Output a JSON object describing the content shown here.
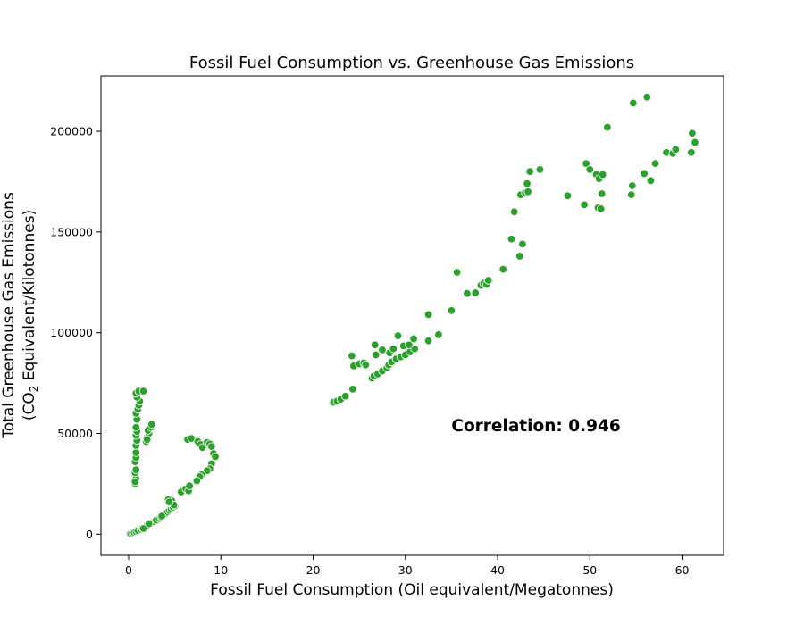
{
  "chart_data": {
    "type": "scatter",
    "title": "Fossil Fuel Consumption vs. Greenhouse Gas Emissions",
    "xlabel": "Fossil Fuel Consumption (Oil equivalent/Megatonnes)",
    "ylabel_line1": "Total Greenhouse Gas Emissions",
    "ylabel_line2_prefix": "(CO",
    "ylabel_line2_sub": "2",
    "ylabel_line2_suffix": " Equivalent/Kilotonnes)",
    "annotation": "Correlation: 0.946",
    "annotation_position": {
      "x": 35,
      "y": 51000
    },
    "xlim": [
      -3,
      64.5
    ],
    "ylim": [
      -10500,
      227500
    ],
    "xticks": [
      0,
      10,
      20,
      30,
      40,
      50,
      60
    ],
    "yticks": [
      0,
      50000,
      100000,
      150000,
      200000
    ],
    "grid": false,
    "marker_color": "#2ca02c",
    "marker_edge_color": "#ffffff",
    "points": [
      [
        0.2,
        300
      ],
      [
        0.4,
        600
      ],
      [
        0.6,
        900
      ],
      [
        0.8,
        1300
      ],
      [
        1.0,
        1800
      ],
      [
        1.3,
        2400
      ],
      [
        1.5,
        3000
      ],
      [
        1.8,
        3600
      ],
      [
        2.0,
        4300
      ],
      [
        2.3,
        5000
      ],
      [
        2.5,
        5600
      ],
      [
        2.8,
        6300
      ],
      [
        3.0,
        7000
      ],
      [
        3.3,
        7800
      ],
      [
        3.5,
        8500
      ],
      [
        3.8,
        9300
      ],
      [
        4.0,
        10200
      ],
      [
        4.2,
        11000
      ],
      [
        4.4,
        11800
      ],
      [
        4.6,
        12500
      ],
      [
        4.8,
        13300
      ],
      [
        5.0,
        14000
      ],
      [
        4.5,
        15500
      ],
      [
        4.7,
        16500
      ],
      [
        4.3,
        17200
      ],
      [
        1.6,
        2800
      ],
      [
        2.2,
        5200
      ],
      [
        3.6,
        9000
      ],
      [
        4.9,
        14500
      ],
      [
        4.4,
        16000
      ],
      [
        0.7,
        25000
      ],
      [
        0.8,
        27500
      ],
      [
        0.7,
        30500
      ],
      [
        0.8,
        32000
      ],
      [
        0.7,
        36000
      ],
      [
        0.8,
        38000
      ],
      [
        0.8,
        40500
      ],
      [
        0.8,
        44000
      ],
      [
        0.9,
        46500
      ],
      [
        0.8,
        49000
      ],
      [
        0.9,
        51000
      ],
      [
        0.8,
        53000
      ],
      [
        0.9,
        57000
      ],
      [
        0.8,
        60000
      ],
      [
        1.0,
        62000
      ],
      [
        1.1,
        64000
      ],
      [
        1.2,
        66000
      ],
      [
        0.9,
        68000
      ],
      [
        0.8,
        70000
      ],
      [
        1.1,
        71000
      ],
      [
        1.6,
        71000
      ],
      [
        0.7,
        26000
      ],
      [
        1.9,
        46000
      ],
      [
        2.0,
        48000
      ],
      [
        2.2,
        50000
      ],
      [
        2.1,
        51500
      ],
      [
        2.4,
        53000
      ],
      [
        2.5,
        54500
      ],
      [
        2.0,
        47000
      ],
      [
        5.7,
        21000
      ],
      [
        6.2,
        22500
      ],
      [
        6.5,
        21500
      ],
      [
        6.6,
        24000
      ],
      [
        6.4,
        47000
      ],
      [
        6.8,
        47500
      ],
      [
        7.5,
        46000
      ],
      [
        7.8,
        44500
      ],
      [
        8.0,
        43000
      ],
      [
        8.5,
        45500
      ],
      [
        8.8,
        44800
      ],
      [
        9.0,
        43500
      ],
      [
        9.2,
        40000
      ],
      [
        9.4,
        38500
      ],
      [
        9.0,
        35000
      ],
      [
        8.8,
        32500
      ],
      [
        8.5,
        31500
      ],
      [
        7.9,
        29500
      ],
      [
        7.7,
        28500
      ],
      [
        7.4,
        26500
      ],
      [
        22.2,
        65500
      ],
      [
        22.6,
        66000
      ],
      [
        23.0,
        67000
      ],
      [
        23.5,
        68500
      ],
      [
        24.3,
        72000
      ],
      [
        24.2,
        88500
      ],
      [
        24.4,
        83500
      ],
      [
        25.0,
        84500
      ],
      [
        25.5,
        85000
      ],
      [
        25.7,
        84000
      ],
      [
        26.4,
        77500
      ],
      [
        26.6,
        78500
      ],
      [
        27.0,
        79500
      ],
      [
        27.5,
        81000
      ],
      [
        28.0,
        82500
      ],
      [
        28.2,
        84000
      ],
      [
        28.5,
        85500
      ],
      [
        29.0,
        87000
      ],
      [
        29.5,
        88000
      ],
      [
        30.0,
        89000
      ],
      [
        30.5,
        90500
      ],
      [
        31.0,
        92000
      ],
      [
        26.7,
        94000
      ],
      [
        26.8,
        89000
      ],
      [
        27.5,
        91500
      ],
      [
        28.3,
        90000
      ],
      [
        28.7,
        92000
      ],
      [
        29.2,
        98500
      ],
      [
        29.8,
        93500
      ],
      [
        30.4,
        94000
      ],
      [
        30.9,
        97000
      ],
      [
        32.5,
        96000
      ],
      [
        32.5,
        109000
      ],
      [
        33.6,
        99000
      ],
      [
        35.0,
        111000
      ],
      [
        35.6,
        130000
      ],
      [
        36.7,
        119500
      ],
      [
        37.6,
        119800
      ],
      [
        38.2,
        123500
      ],
      [
        38.5,
        124500
      ],
      [
        38.8,
        124000
      ],
      [
        39.0,
        126000
      ],
      [
        40.6,
        131500
      ],
      [
        41.5,
        146500
      ],
      [
        41.8,
        160000
      ],
      [
        42.4,
        138000
      ],
      [
        42.5,
        168500
      ],
      [
        42.7,
        144000
      ],
      [
        43.0,
        169500
      ],
      [
        43.2,
        174000
      ],
      [
        43.3,
        170000
      ],
      [
        43.5,
        180000
      ],
      [
        44.6,
        181000
      ],
      [
        47.6,
        168000
      ],
      [
        49.4,
        163500
      ],
      [
        49.6,
        184000
      ],
      [
        50.0,
        181000
      ],
      [
        50.7,
        178500
      ],
      [
        51.0,
        176500
      ],
      [
        50.9,
        162000
      ],
      [
        51.2,
        161500
      ],
      [
        51.3,
        169000
      ],
      [
        51.4,
        178500
      ],
      [
        51.9,
        202000
      ],
      [
        54.5,
        168500
      ],
      [
        54.6,
        173000
      ],
      [
        54.7,
        214000
      ],
      [
        55.9,
        179000
      ],
      [
        56.2,
        217000
      ],
      [
        56.6,
        175500
      ],
      [
        57.1,
        184000
      ],
      [
        58.3,
        189500
      ],
      [
        59.0,
        189000
      ],
      [
        59.3,
        191000
      ],
      [
        61.0,
        189500
      ],
      [
        61.1,
        199000
      ],
      [
        61.4,
        194500
      ]
    ]
  }
}
